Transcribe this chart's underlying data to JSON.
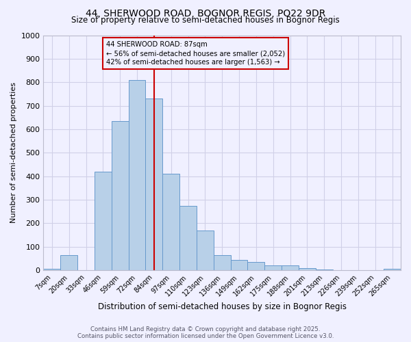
{
  "title1": "44, SHERWOOD ROAD, BOGNOR REGIS, PO22 9DR",
  "title2": "Size of property relative to semi-detached houses in Bognor Regis",
  "xlabel": "Distribution of semi-detached houses by size in Bognor Regis",
  "ylabel": "Number of semi-detached properties",
  "bin_labels": [
    "7sqm",
    "20sqm",
    "33sqm",
    "46sqm",
    "59sqm",
    "72sqm",
    "84sqm",
    "97sqm",
    "110sqm",
    "123sqm",
    "136sqm",
    "149sqm",
    "162sqm",
    "175sqm",
    "188sqm",
    "201sqm",
    "213sqm",
    "226sqm",
    "239sqm",
    "252sqm",
    "265sqm"
  ],
  "bar_values": [
    5,
    65,
    0,
    420,
    635,
    810,
    730,
    410,
    275,
    170,
    65,
    43,
    35,
    20,
    20,
    8,
    3,
    2,
    1,
    1,
    5
  ],
  "bar_color": "#b8d0e8",
  "bar_edge_color": "#6699cc",
  "vline_color": "#cc0000",
  "property_label": "44 SHERWOOD ROAD: 87sqm",
  "pct_smaller": "56% of semi-detached houses are smaller (2,052)",
  "pct_larger": "42% of semi-detached houses are larger (1,563)",
  "annotation_box_color": "#cc0000",
  "ylim": [
    0,
    1000
  ],
  "yticks": [
    0,
    100,
    200,
    300,
    400,
    500,
    600,
    700,
    800,
    900,
    1000
  ],
  "footer1": "Contains HM Land Registry data © Crown copyright and database right 2025.",
  "footer2": "Contains public sector information licensed under the Open Government Licence v3.0.",
  "background_color": "#f0f0ff",
  "grid_color": "#d0d0e8"
}
